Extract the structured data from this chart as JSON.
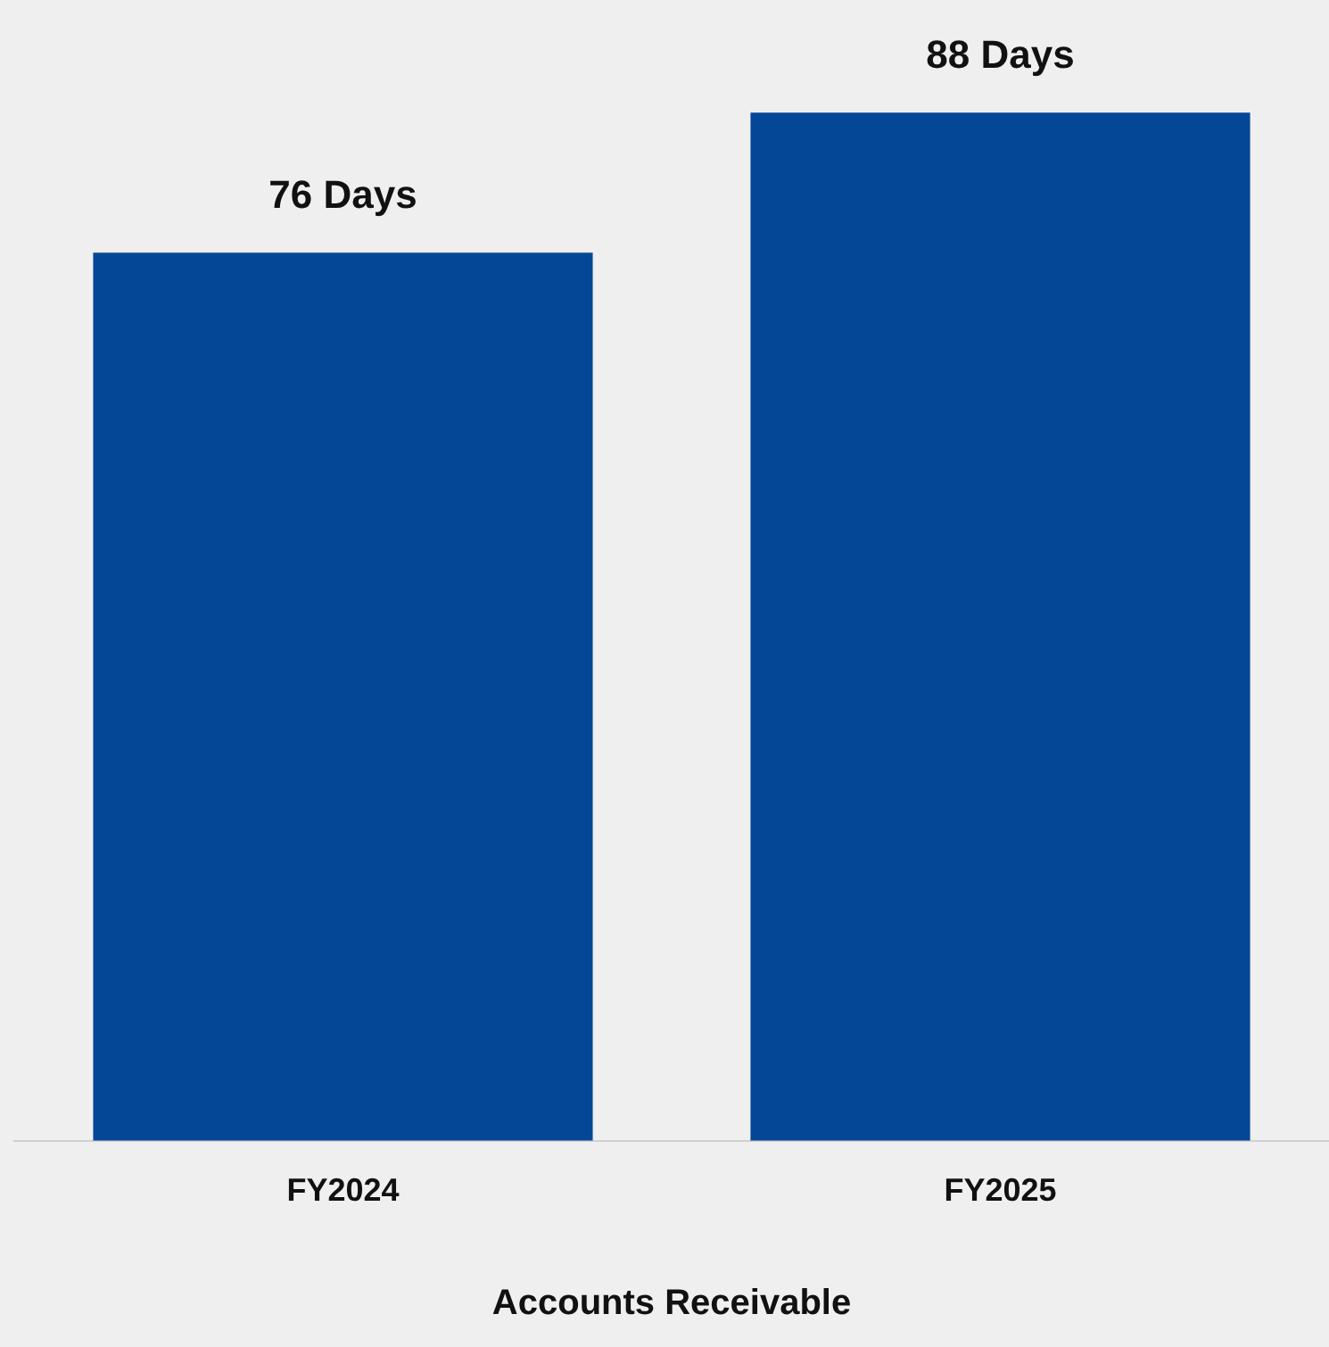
{
  "chart_data": {
    "type": "bar",
    "xlabel": "Accounts Receivable",
    "categories": [
      "FY2024",
      "FY2025"
    ],
    "values": [
      76,
      88
    ],
    "color": "#044797",
    "value_labels": [
      "76 Days",
      "88 Days"
    ],
    "relative": false
  }
}
